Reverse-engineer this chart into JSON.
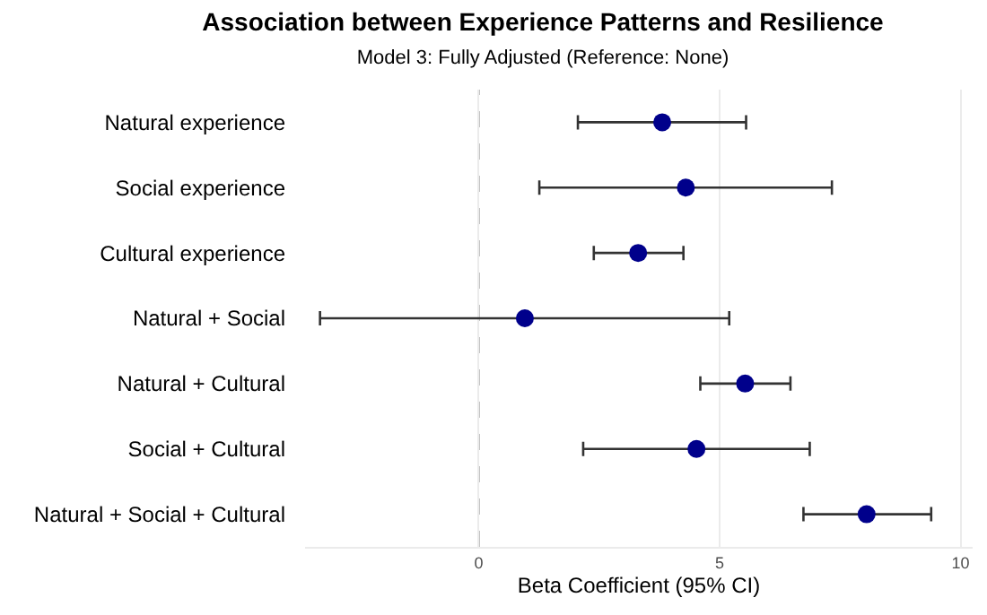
{
  "chart_data": {
    "type": "scatter",
    "title": "Association between Experience Patterns and Resilience",
    "subtitle": "Model 3: Fully Adjusted (Reference: None)",
    "xlabel": "Beta Coefficient (95% CI)",
    "orientation": "horizontal",
    "categories": [
      "Natural experience",
      "Social experience",
      "Cultural experience",
      "Natural + Social",
      "Natural + Cultural",
      "Social + Cultural",
      "Natural + Social + Cultural"
    ],
    "values": [
      3.81,
      4.3,
      3.31,
      0.96,
      5.53,
      4.52,
      8.05
    ],
    "errors": [
      [
        2.06,
        5.55
      ],
      [
        1.26,
        7.33
      ],
      [
        2.39,
        4.25
      ],
      [
        -3.29,
        5.2
      ],
      [
        4.6,
        6.47
      ],
      [
        2.17,
        6.87
      ],
      [
        6.74,
        9.39
      ]
    ],
    "color": "#00008b",
    "xlim": [
      -3.6,
      10.25
    ],
    "xticks": [
      0,
      5,
      10
    ],
    "grid": "x",
    "marker": "circle",
    "ref_lines": [
      {
        "axis": "x",
        "value": 0,
        "color": "#999999",
        "line_style": "dashed"
      }
    ]
  }
}
